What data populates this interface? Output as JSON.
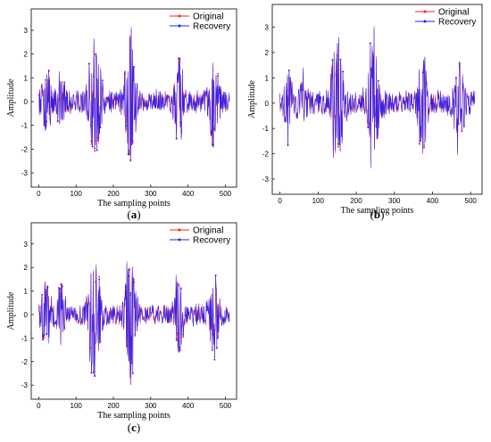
{
  "chart_data": [
    {
      "type": "line",
      "panel_label": "(a)",
      "xlabel": "The sampling points",
      "ylabel": "Amplitude",
      "xlim": [
        -20,
        530
      ],
      "ylim": [
        -3.6,
        3.9
      ],
      "x_ticks": [
        0,
        100,
        200,
        300,
        400,
        500
      ],
      "y_ticks": [
        -3,
        -2,
        -1,
        0,
        1,
        2,
        3
      ],
      "legend_position": "top-right",
      "envelope": [
        {
          "center": 20,
          "width": 12,
          "amp": 1.4
        },
        {
          "center": 60,
          "width": 12,
          "amp": 0.9
        },
        {
          "center": 150,
          "width": 16,
          "amp": 2.9
        },
        {
          "center": 245,
          "width": 14,
          "amp": 3.0
        },
        {
          "center": 375,
          "width": 12,
          "amp": 2.0
        },
        {
          "center": 470,
          "width": 12,
          "amp": 1.9
        }
      ],
      "baseline_amplitude": 0.45,
      "seed": 11,
      "series": [
        {
          "name": "Original",
          "color": "#ff2020"
        },
        {
          "name": "Recovery",
          "color": "#2020ff"
        }
      ]
    },
    {
      "type": "line",
      "panel_label": "(b)",
      "xlabel": "The sampling points",
      "ylabel": "Amplitude",
      "xlim": [
        -20,
        530
      ],
      "ylim": [
        -3.6,
        3.9
      ],
      "x_ticks": [
        0,
        100,
        200,
        300,
        400,
        500
      ],
      "y_ticks": [
        -3,
        -2,
        -1,
        0,
        1,
        2,
        3
      ],
      "legend_position": "top-right",
      "envelope": [
        {
          "center": 20,
          "width": 12,
          "amp": 1.3
        },
        {
          "center": 60,
          "width": 12,
          "amp": 0.9
        },
        {
          "center": 150,
          "width": 16,
          "amp": 2.8
        },
        {
          "center": 245,
          "width": 14,
          "amp": 2.9
        },
        {
          "center": 375,
          "width": 12,
          "amp": 2.3
        },
        {
          "center": 470,
          "width": 12,
          "amp": 1.9
        }
      ],
      "baseline_amplitude": 0.45,
      "seed": 23,
      "series": [
        {
          "name": "Original",
          "color": "#ff2020"
        },
        {
          "name": "Recovery",
          "color": "#2020ff"
        }
      ]
    },
    {
      "type": "line",
      "panel_label": "(c)",
      "xlabel": "The sampling points",
      "ylabel": "Amplitude",
      "xlim": [
        -20,
        530
      ],
      "ylim": [
        -3.6,
        3.9
      ],
      "x_ticks": [
        0,
        100,
        200,
        300,
        400,
        500
      ],
      "y_ticks": [
        -3,
        -2,
        -1,
        0,
        1,
        2,
        3
      ],
      "legend_position": "top-right",
      "envelope": [
        {
          "center": 20,
          "width": 12,
          "amp": 1.3
        },
        {
          "center": 60,
          "width": 12,
          "amp": 0.9
        },
        {
          "center": 150,
          "width": 16,
          "amp": 2.9
        },
        {
          "center": 245,
          "width": 14,
          "amp": 2.8
        },
        {
          "center": 375,
          "width": 12,
          "amp": 1.9
        },
        {
          "center": 470,
          "width": 12,
          "amp": 1.6
        }
      ],
      "baseline_amplitude": 0.45,
      "seed": 37,
      "series": [
        {
          "name": "Original",
          "color": "#ff2020"
        },
        {
          "name": "Recovery",
          "color": "#2020ff"
        }
      ]
    }
  ]
}
